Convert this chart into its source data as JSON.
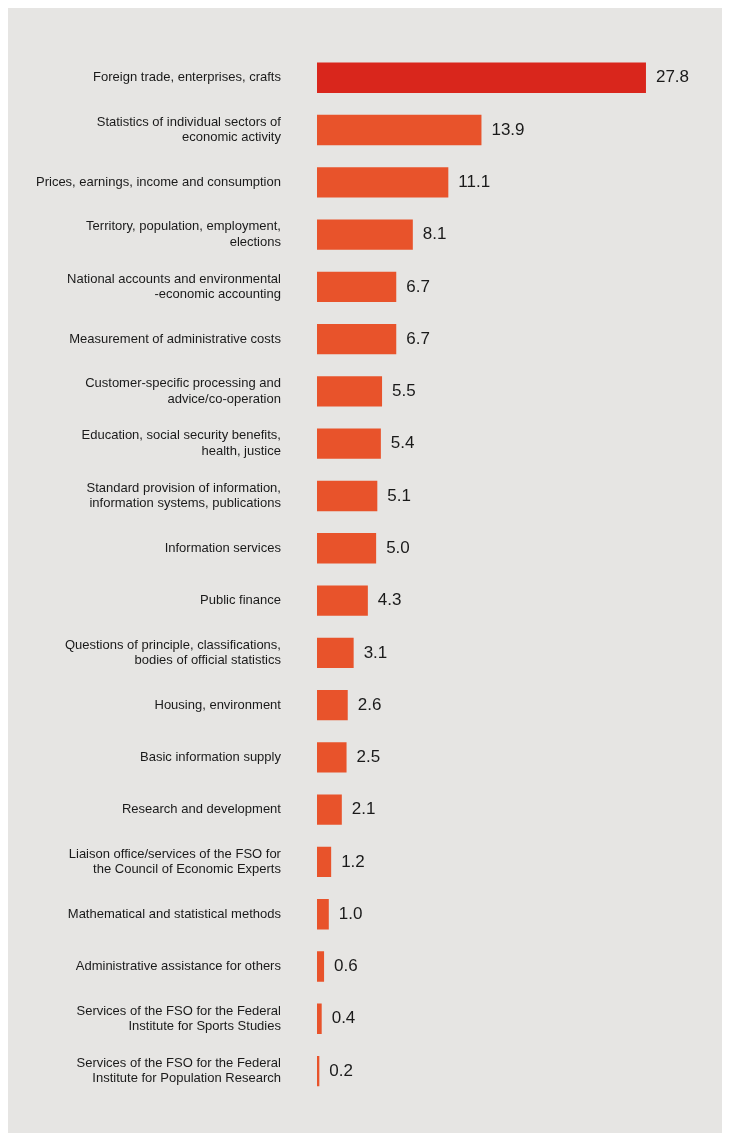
{
  "chart_data": {
    "type": "bar",
    "orientation": "horizontal",
    "legend": false,
    "value_labels": [
      "27.8",
      "13.9",
      "11.1",
      "8.1",
      "6.7",
      "6.7",
      "5.5",
      "5.4",
      "5.1",
      "5.0",
      "4.3",
      "3.1",
      "2.6",
      "2.5",
      "2.1",
      "1.2",
      "1.0",
      "0.6",
      "0.4",
      "0.2"
    ],
    "categories": [
      "Foreign trade, enterprises, crafts",
      "Statistics of individual sectors of economic activity",
      "Prices, earnings, income and consumption",
      "Territory, population, employment, elections",
      "National accounts and environmental -economic accounting",
      "Measurement of administrative costs",
      "Customer-specific processing and advice/co-operation",
      "Education, social security benefits, health, justice",
      "Standard provision of information, information systems, publications",
      "Information services",
      "Public finance",
      "Questions of principle, classifications, bodies of official statistics",
      "Housing, environment",
      "Basic information supply",
      "Research and development",
      "Liaison office/services of the FSO for the Council of Economic Experts",
      "Mathematical and statistical methods",
      "Administrative assistance for others",
      "Services of the FSO for the Federal Institute for Sports Studies",
      "Services of the FSO for the Federal Institute for Population Research"
    ],
    "values": [
      27.8,
      13.9,
      11.1,
      8.1,
      6.7,
      6.7,
      5.5,
      5.4,
      5.1,
      5.0,
      4.3,
      3.1,
      2.6,
      2.5,
      2.1,
      1.2,
      1.0,
      0.6,
      0.4,
      0.2
    ],
    "colors": [
      "#d9261c",
      "#e8532b",
      "#e8532b",
      "#e8532b",
      "#e8532b",
      "#e8532b",
      "#e8532b",
      "#e8532b",
      "#e8532b",
      "#e8532b",
      "#e8532b",
      "#e8532b",
      "#e8532b",
      "#e8532b",
      "#e8532b",
      "#e8532b",
      "#e8532b",
      "#e8532b",
      "#e8532b",
      "#e8532b"
    ]
  }
}
